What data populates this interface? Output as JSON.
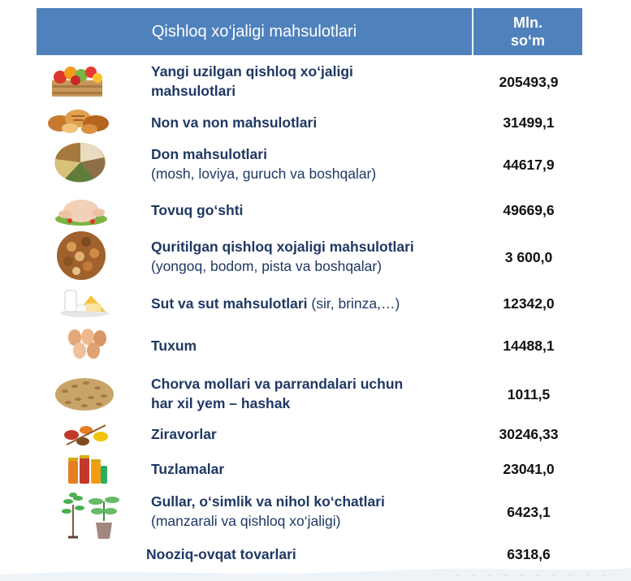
{
  "table": {
    "header": {
      "title": "Qishloq xo‘jaligi mahsulotlari",
      "unit_line1": "Mln.",
      "unit_line2": "so‘m"
    },
    "rows": [
      {
        "line1": "Yangi uzilgan qishloq xo‘jaligi",
        "line2": "mahsulotlari",
        "value": "205493,9",
        "icon": "fruit-crate-icon"
      },
      {
        "line1": "Non va non mahsulotlari",
        "value": "31499,1",
        "icon": "bread-icon"
      },
      {
        "line1": "Don mahsulotlari",
        "sub": "(mosh, loviya, guruch va boshqalar)",
        "value": "44617,9",
        "icon": "grains-icon"
      },
      {
        "line1": "Tovuq go‘shti",
        "value": "49669,6",
        "icon": "chicken-icon"
      },
      {
        "line1": "Quritilgan qishloq xojaligi mahsulotlari",
        "sub": "(yongoq, bodom, pista va boshqalar)",
        "value": "3 600,0",
        "icon": "nuts-icon"
      },
      {
        "line1": "Sut va sut mahsulotlari",
        "sub_inline": " (sir, brinza,…)",
        "value": "12342,0",
        "icon": "dairy-icon"
      },
      {
        "line1": "Tuxum",
        "value": "14488,1",
        "icon": "eggs-icon"
      },
      {
        "line1": "Chorva mollari va parrandalari uchun",
        "line2": "har xil yem – hashak",
        "value": "1011,5",
        "icon": "feed-pellets-icon"
      },
      {
        "line1": "Ziravorlar",
        "value": "30246,33",
        "icon": "spices-icon"
      },
      {
        "line1": "Tuzlamalar",
        "value": "23041,0",
        "icon": "pickles-icon"
      },
      {
        "line1": "Gullar, o‘simlik va nihol ko‘chatlari",
        "sub": "(manzarali va qishloq xo‘jaligi)",
        "value": "6423,1",
        "icon": "seedlings-icon"
      },
      {
        "line1": "Nooziq-ovqat tovarlari",
        "value": "6318,6"
      }
    ]
  }
}
